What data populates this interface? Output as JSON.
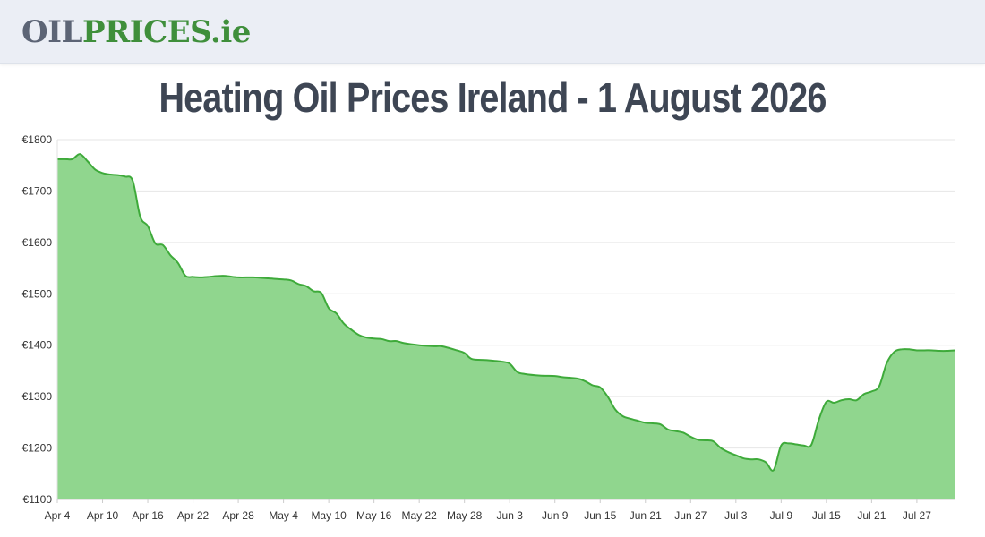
{
  "header": {
    "logo": {
      "part1": "OIL",
      "part2": "PRICES",
      "part3": ".ie"
    }
  },
  "page_title": "Heating Oil Prices Ireland - 1 August 2026",
  "colors": {
    "fill": "#90d68e",
    "line": "#3eaa3a",
    "grid": "#e6e6e6",
    "logo_gray": "#5c6475",
    "logo_green": "#3f8f3b"
  },
  "chart_data": {
    "type": "area",
    "title": "Heating Oil Prices Ireland - 1 August 2026",
    "xlabel": "",
    "ylabel": "",
    "ylim": [
      1100,
      1800
    ],
    "yticks": [
      1100,
      1200,
      1300,
      1400,
      1500,
      1600,
      1700,
      1800
    ],
    "ytick_labels": [
      "€1100",
      "€1200",
      "€1300",
      "€1400",
      "€1500",
      "€1600",
      "€1700",
      "€1800"
    ],
    "xlim": [
      "2026-04-04",
      "2026-08-01"
    ],
    "xticks": [
      "Apr 4",
      "Apr 10",
      "Apr 16",
      "Apr 22",
      "Apr 28",
      "May 4",
      "May 10",
      "May 16",
      "May 22",
      "May 28",
      "Jun 3",
      "Jun 9",
      "Jun 15",
      "Jun 21",
      "Jun 27",
      "Jul 3",
      "Jul 9",
      "Jul 15",
      "Jul 21",
      "Jul 27"
    ],
    "grid": true,
    "legend": "none",
    "series": [
      {
        "points": [
          [
            "2026-04-04",
            1762
          ],
          [
            "2026-04-05",
            1762
          ],
          [
            "2026-04-06",
            1762
          ],
          [
            "2026-04-07",
            1772
          ],
          [
            "2026-04-08",
            1758
          ],
          [
            "2026-04-09",
            1742
          ],
          [
            "2026-04-10",
            1735
          ],
          [
            "2026-04-11",
            1732
          ],
          [
            "2026-04-12",
            1731
          ],
          [
            "2026-04-13",
            1728
          ],
          [
            "2026-04-14",
            1720
          ],
          [
            "2026-04-15",
            1650
          ],
          [
            "2026-04-16",
            1632
          ],
          [
            "2026-04-17",
            1598
          ],
          [
            "2026-04-18",
            1595
          ],
          [
            "2026-04-19",
            1575
          ],
          [
            "2026-04-20",
            1560
          ],
          [
            "2026-04-21",
            1535
          ],
          [
            "2026-04-22",
            1533
          ],
          [
            "2026-04-23",
            1532
          ],
          [
            "2026-04-24",
            1533
          ],
          [
            "2026-04-26",
            1535
          ],
          [
            "2026-04-28",
            1532
          ],
          [
            "2026-04-30",
            1532
          ],
          [
            "2026-05-02",
            1530
          ],
          [
            "2026-05-04",
            1528
          ],
          [
            "2026-05-05",
            1526
          ],
          [
            "2026-05-06",
            1519
          ],
          [
            "2026-05-07",
            1515
          ],
          [
            "2026-05-08",
            1505
          ],
          [
            "2026-05-09",
            1502
          ],
          [
            "2026-05-10",
            1472
          ],
          [
            "2026-05-11",
            1462
          ],
          [
            "2026-05-12",
            1442
          ],
          [
            "2026-05-13",
            1430
          ],
          [
            "2026-05-14",
            1420
          ],
          [
            "2026-05-15",
            1415
          ],
          [
            "2026-05-16",
            1413
          ],
          [
            "2026-05-17",
            1412
          ],
          [
            "2026-05-18",
            1408
          ],
          [
            "2026-05-19",
            1408
          ],
          [
            "2026-05-20",
            1404
          ],
          [
            "2026-05-22",
            1400
          ],
          [
            "2026-05-24",
            1398
          ],
          [
            "2026-05-25",
            1398
          ],
          [
            "2026-05-27",
            1390
          ],
          [
            "2026-05-28",
            1385
          ],
          [
            "2026-05-29",
            1373
          ],
          [
            "2026-05-31",
            1371
          ],
          [
            "2026-06-02",
            1368
          ],
          [
            "2026-06-03",
            1364
          ],
          [
            "2026-06-04",
            1348
          ],
          [
            "2026-06-05",
            1344
          ],
          [
            "2026-06-07",
            1341
          ],
          [
            "2026-06-09",
            1340
          ],
          [
            "2026-06-10",
            1338
          ],
          [
            "2026-06-12",
            1335
          ],
          [
            "2026-06-13",
            1330
          ],
          [
            "2026-06-14",
            1322
          ],
          [
            "2026-06-15",
            1318
          ],
          [
            "2026-06-16",
            1300
          ],
          [
            "2026-06-17",
            1275
          ],
          [
            "2026-06-18",
            1262
          ],
          [
            "2026-06-19",
            1257
          ],
          [
            "2026-06-20",
            1253
          ],
          [
            "2026-06-21",
            1249
          ],
          [
            "2026-06-22",
            1248
          ],
          [
            "2026-06-23",
            1246
          ],
          [
            "2026-06-24",
            1236
          ],
          [
            "2026-06-25",
            1233
          ],
          [
            "2026-06-26",
            1230
          ],
          [
            "2026-06-27",
            1222
          ],
          [
            "2026-06-28",
            1216
          ],
          [
            "2026-06-29",
            1215
          ],
          [
            "2026-06-30",
            1213
          ],
          [
            "2026-07-01",
            1200
          ],
          [
            "2026-07-02",
            1192
          ],
          [
            "2026-07-03",
            1186
          ],
          [
            "2026-07-04",
            1180
          ],
          [
            "2026-07-05",
            1178
          ],
          [
            "2026-07-06",
            1178
          ],
          [
            "2026-07-07",
            1172
          ],
          [
            "2026-07-08",
            1157
          ],
          [
            "2026-07-09",
            1205
          ],
          [
            "2026-07-10",
            1209
          ],
          [
            "2026-07-11",
            1207
          ],
          [
            "2026-07-12",
            1205
          ],
          [
            "2026-07-13",
            1206
          ],
          [
            "2026-07-14",
            1255
          ],
          [
            "2026-07-15",
            1290
          ],
          [
            "2026-07-16",
            1288
          ],
          [
            "2026-07-17",
            1293
          ],
          [
            "2026-07-18",
            1295
          ],
          [
            "2026-07-19",
            1293
          ],
          [
            "2026-07-20",
            1305
          ],
          [
            "2026-07-21",
            1310
          ],
          [
            "2026-07-22",
            1320
          ],
          [
            "2026-07-23",
            1365
          ],
          [
            "2026-07-24",
            1387
          ],
          [
            "2026-07-25",
            1392
          ],
          [
            "2026-07-26",
            1392
          ],
          [
            "2026-07-27",
            1390
          ],
          [
            "2026-07-28",
            1390
          ],
          [
            "2026-07-29",
            1390
          ],
          [
            "2026-07-30",
            1389
          ],
          [
            "2026-07-31",
            1389
          ],
          [
            "2026-08-01",
            1390
          ]
        ]
      }
    ]
  }
}
